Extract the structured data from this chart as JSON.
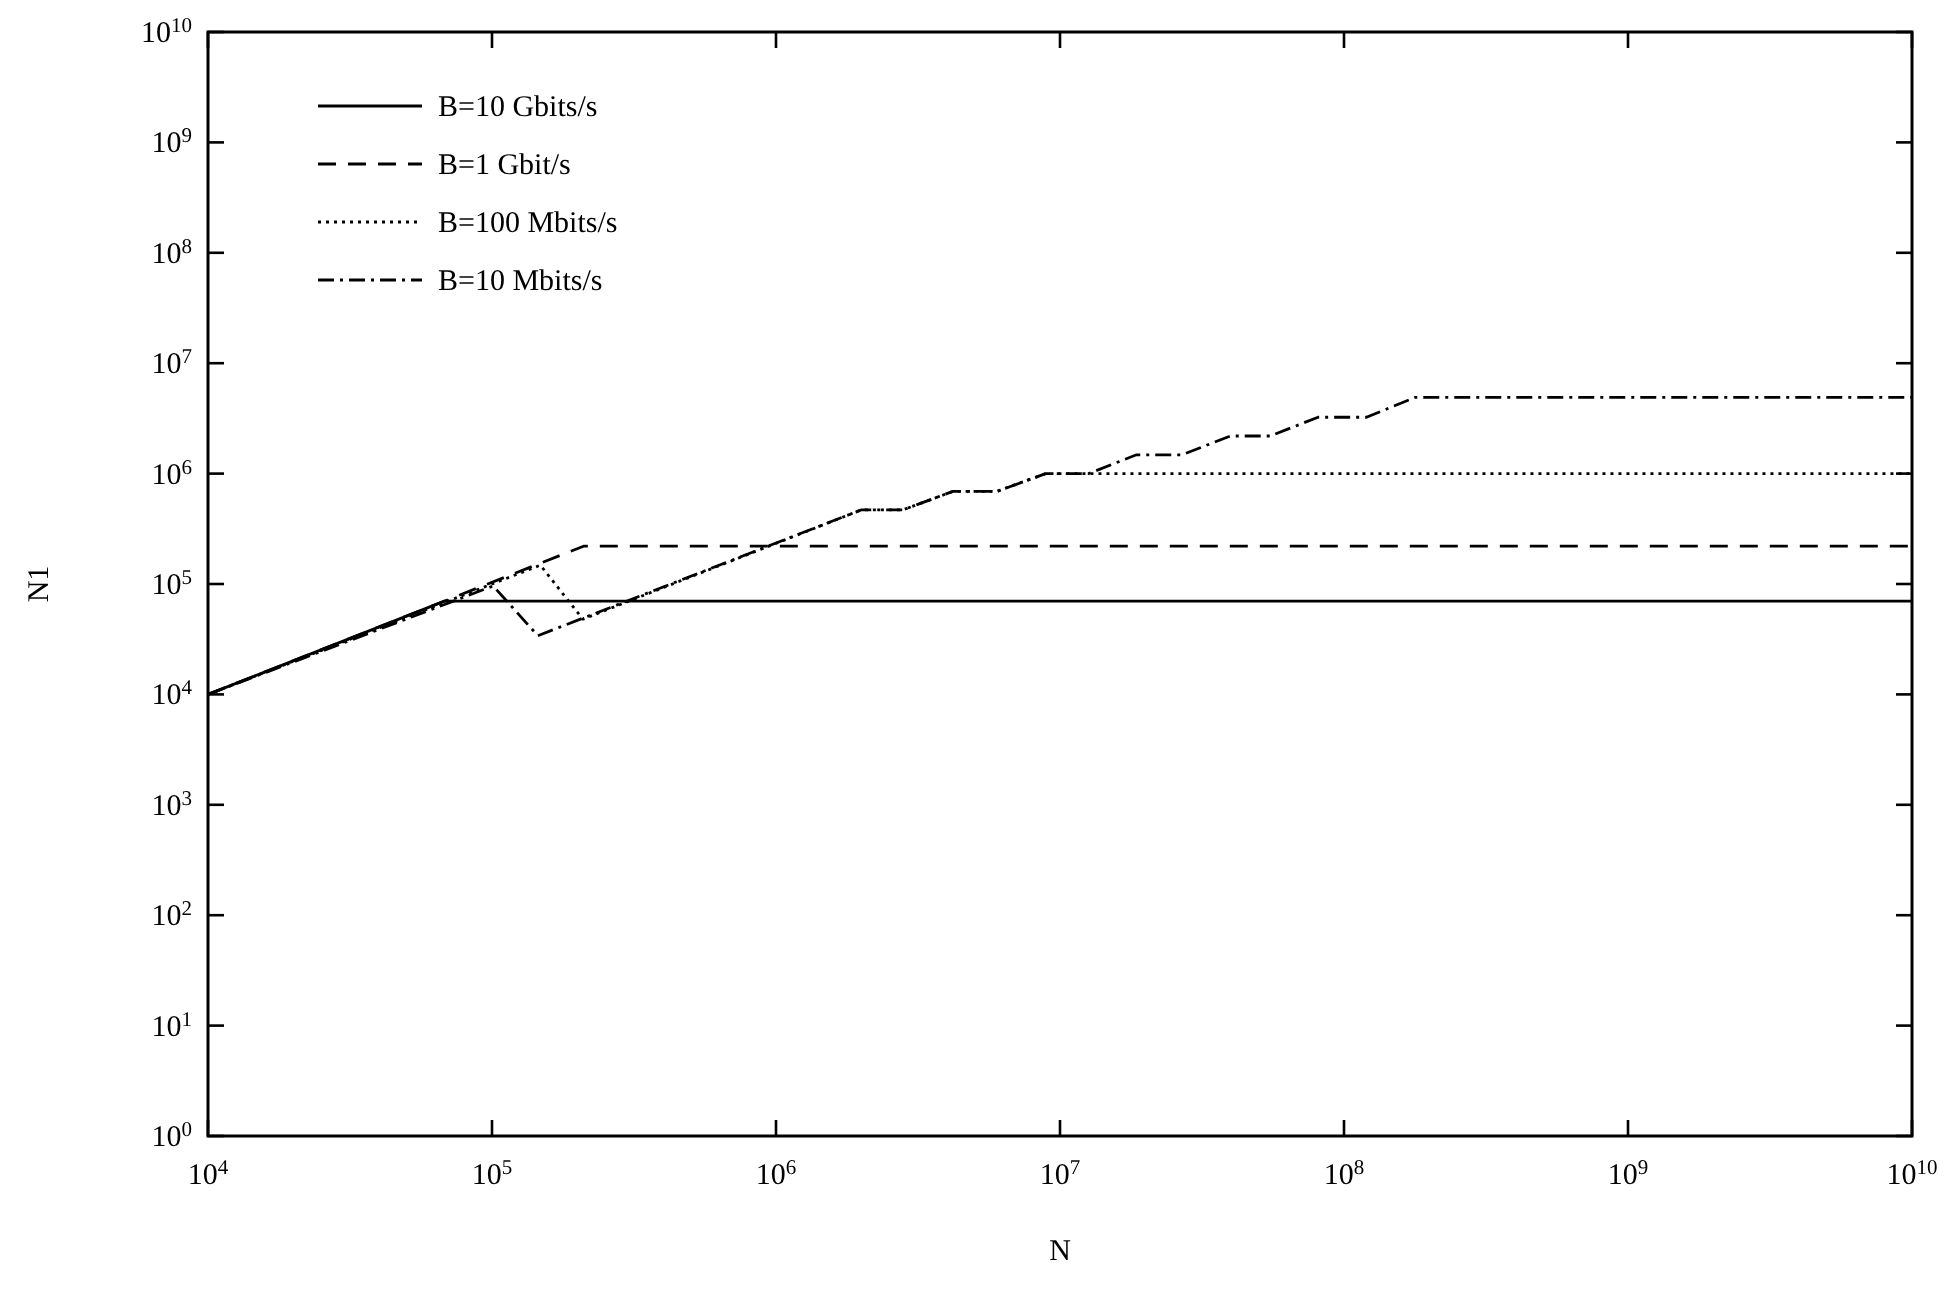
{
  "chart_data": {
    "type": "line",
    "xlabel": "N",
    "ylabel": "N1",
    "log": "xy",
    "xlim": [
      10000,
      10000000000
    ],
    "ylim": [
      1,
      10000000000
    ],
    "xticks": [
      {
        "value": 10000,
        "label": "10$^{4}$"
      },
      {
        "value": 100000,
        "label": "10$^{5}$"
      },
      {
        "value": 1000000,
        "label": "10$^{6}$"
      },
      {
        "value": 10000000,
        "label": "10$^{7}$"
      },
      {
        "value": 100000000,
        "label": "10$^{8}$"
      },
      {
        "value": 1000000000,
        "label": "10$^{9}$"
      },
      {
        "value": 10000000000,
        "label": "10$^{10}$"
      }
    ],
    "yticks": [
      {
        "value": 1,
        "label": "10$^{0}$"
      },
      {
        "value": 10,
        "label": "10$^{1}$"
      },
      {
        "value": 100,
        "label": "10$^{2}$"
      },
      {
        "value": 1000,
        "label": "10$^{3}$"
      },
      {
        "value": 10000,
        "label": "10$^{4}$"
      },
      {
        "value": 100000,
        "label": "10$^{5}$"
      },
      {
        "value": 1000000,
        "label": "10$^{6}$"
      },
      {
        "value": 10000000,
        "label": "10$^{7}$"
      },
      {
        "value": 100000000,
        "label": "10$^{8}$"
      },
      {
        "value": 1000000000,
        "label": "10$^{9}$"
      },
      {
        "value": 10000000000,
        "label": "10$^{10}$"
      }
    ],
    "grid": false,
    "legend": "top left",
    "series": [
      {
        "name": "B=10 Gbits/s",
        "color": "#000000",
        "line_style": "solid",
        "x": [
          10000,
          68000,
          10000000000
        ],
        "values": [
          10000,
          70000,
          70000
        ]
      },
      {
        "name": "B=1 Gbit/s",
        "color": "#000000",
        "line_style": "dashed",
        "x": [
          10000,
          210000,
          10000000000
        ],
        "values": [
          10000,
          220000,
          220000
        ]
      },
      {
        "name": "B=100 Mbits/s",
        "color": "#000000",
        "line_style": "dotted",
        "x": [
          10000,
          148000,
          209000,
          2000000,
          2800000,
          4200000,
          6000000,
          8900000,
          10000000000
        ],
        "values": [
          10000,
          148000,
          48000,
          470000,
          470000,
          690000,
          690000,
          1000000,
          1000000
        ]
      },
      {
        "name": "B=10 Mbits/s",
        "color": "#000000",
        "line_style": "dashdot",
        "x": [
          10000,
          101000,
          145000,
          2000000,
          2800000,
          4200000,
          6000000,
          8900000,
          12600000,
          18600000,
          26900000,
          39800000,
          55000000,
          81000000,
          120000000,
          178000000,
          10000000000
        ],
        "values": [
          10000,
          96000,
          34000,
          470000,
          470000,
          690000,
          690000,
          1000000,
          1000000,
          1480000,
          1480000,
          2190000,
          2190000,
          3240000,
          3240000,
          4900000,
          4900000
        ]
      }
    ]
  }
}
